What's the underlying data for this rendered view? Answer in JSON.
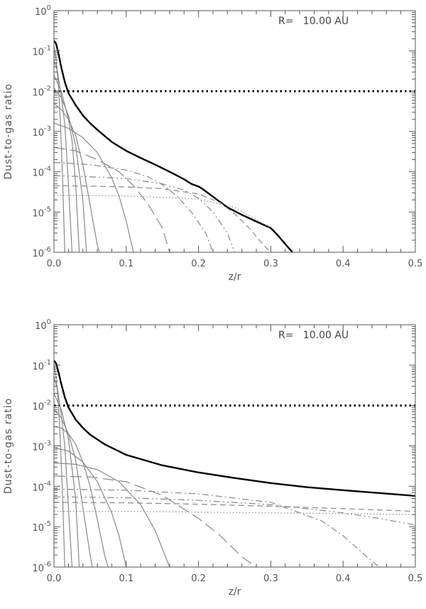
{
  "chart_data": [
    {
      "type": "line",
      "xlabel": "z/r",
      "ylabel": "Dust-to-gas ratio",
      "annotation": "R=   10.00 AU",
      "xlim": [
        0,
        0.5
      ],
      "ylim": [
        1e-06,
        1
      ],
      "yscale": "log",
      "xticks": [
        "0.0",
        "0.1",
        "0.2",
        "0.3",
        "0.4",
        "0.5"
      ],
      "yticks": [
        {
          "base": "10",
          "exp": "0"
        },
        {
          "base": "10",
          "exp": "-1"
        },
        {
          "base": "10",
          "exp": "-2"
        },
        {
          "base": "10",
          "exp": "-3"
        },
        {
          "base": "10",
          "exp": "-4"
        },
        {
          "base": "10",
          "exp": "-5"
        },
        {
          "base": "10",
          "exp": "-6"
        }
      ],
      "grid": false,
      "series": [
        {
          "style": "total",
          "color": "#000000",
          "x": [
            0,
            0.003,
            0.006,
            0.01,
            0.015,
            0.02,
            0.03,
            0.04,
            0.05,
            0.06,
            0.08,
            0.1,
            0.12,
            0.14,
            0.16,
            0.18,
            0.19,
            0.2,
            0.205,
            0.22,
            0.24,
            0.26,
            0.28,
            0.3,
            0.31,
            0.32,
            0.33
          ],
          "y": [
            0.18,
            0.15,
            0.09,
            0.04,
            0.017,
            0.009,
            0.0045,
            0.0025,
            0.0016,
            0.0011,
            0.00055,
            0.00033,
            0.00022,
            0.00015,
            0.0001,
            6.5e-05,
            5e-05,
            4.3e-05,
            3.8e-05,
            2.4e-05,
            1.3e-05,
            8.5e-06,
            5.8e-06,
            4e-06,
            2.6e-06,
            1.6e-06,
            1e-06
          ]
        },
        {
          "style": "reference",
          "color": "#000000",
          "x": [
            0,
            0.5
          ],
          "y": [
            0.01,
            0.01
          ]
        },
        {
          "style": "solid",
          "color": "#888888",
          "x": [
            0,
            0.003,
            0.006,
            0.009,
            0.012,
            0.015
          ],
          "y": [
            0.13,
            0.06,
            0.015,
            0.0015,
            6e-05,
            1e-06
          ]
        },
        {
          "style": "solid",
          "color": "#888888",
          "x": [
            0,
            0.005,
            0.01,
            0.015,
            0.02,
            0.025
          ],
          "y": [
            0.06,
            0.03,
            0.008,
            0.0015,
            5e-05,
            1e-06
          ]
        },
        {
          "style": "solid",
          "color": "#888888",
          "x": [
            0,
            0.01,
            0.02,
            0.025,
            0.03,
            0.035
          ],
          "y": [
            0.025,
            0.01,
            0.002,
            0.0006,
            5e-05,
            1e-06
          ]
        },
        {
          "style": "solid",
          "color": "#888888",
          "x": [
            0,
            0.01,
            0.02,
            0.03,
            0.04,
            0.045
          ],
          "y": [
            0.012,
            0.007,
            0.0025,
            0.00045,
            2e-05,
            1e-06
          ]
        },
        {
          "style": "solid",
          "color": "#888888",
          "x": [
            0,
            0.01,
            0.02,
            0.03,
            0.04,
            0.05,
            0.06,
            0.063
          ],
          "y": [
            0.005,
            0.0035,
            0.002,
            0.0008,
            0.00015,
            1.5e-05,
            1.5e-06,
            1e-06
          ]
        },
        {
          "style": "solid",
          "color": "#888888",
          "x": [
            0,
            0.02,
            0.04,
            0.06,
            0.08,
            0.09,
            0.1,
            0.11
          ],
          "y": [
            0.0016,
            0.0012,
            0.0007,
            0.0003,
            7e-05,
            2.5e-05,
            6e-06,
            1e-06
          ]
        },
        {
          "style": "longdash",
          "color": "#888888",
          "x": [
            0,
            0.03,
            0.06,
            0.09,
            0.11,
            0.13,
            0.15,
            0.16
          ],
          "y": [
            0.0004,
            0.00033,
            0.0002,
            0.0001,
            4.5e-05,
            1.6e-05,
            4e-06,
            1e-06
          ]
        },
        {
          "style": "dashdot",
          "color": "#888888",
          "x": [
            0,
            0.05,
            0.1,
            0.13,
            0.15,
            0.17,
            0.19,
            0.21,
            0.22
          ],
          "y": [
            0.00017,
            0.00015,
            0.00011,
            7.5e-05,
            4.8e-05,
            2.5e-05,
            1e-05,
            3e-06,
            1e-06
          ]
        },
        {
          "style": "dashdotdot",
          "color": "#888888",
          "x": [
            0,
            0.05,
            0.1,
            0.15,
            0.18,
            0.2,
            0.22,
            0.24,
            0.25
          ],
          "y": [
            8e-05,
            7.5e-05,
            6.8e-05,
            5e-05,
            3.5e-05,
            2.2e-05,
            1e-05,
            3e-06,
            1e-06
          ]
        },
        {
          "style": "dash",
          "color": "#888888",
          "x": [
            0,
            0.05,
            0.1,
            0.15,
            0.2,
            0.23,
            0.25,
            0.27,
            0.29,
            0.3
          ],
          "y": [
            4.5e-05,
            4.4e-05,
            4.2e-05,
            3.8e-05,
            2.8e-05,
            1.7e-05,
            9e-06,
            4e-06,
            1.5e-06,
            1e-06
          ]
        },
        {
          "style": "dot",
          "color": "#888888",
          "x": [
            0,
            0.1,
            0.2,
            0.25,
            0.3
          ],
          "y": [
            2.6e-05,
            2.5e-05,
            2.1e-05,
            1.3e-05,
            4e-06
          ]
        }
      ]
    },
    {
      "type": "line",
      "xlabel": "z/r",
      "ylabel": "Dust-to-gas ratio",
      "annotation": "R=   10.00 AU",
      "xlim": [
        0,
        0.5
      ],
      "ylim": [
        1e-06,
        1
      ],
      "yscale": "log",
      "xticks": [
        "0.0",
        "0.1",
        "0.2",
        "0.3",
        "0.4",
        "0.5"
      ],
      "yticks": [
        {
          "base": "10",
          "exp": "0"
        },
        {
          "base": "10",
          "exp": "-1"
        },
        {
          "base": "10",
          "exp": "-2"
        },
        {
          "base": "10",
          "exp": "-3"
        },
        {
          "base": "10",
          "exp": "-4"
        },
        {
          "base": "10",
          "exp": "-5"
        },
        {
          "base": "10",
          "exp": "-6"
        }
      ],
      "grid": false,
      "series": [
        {
          "style": "total",
          "color": "#000000",
          "x": [
            0,
            0.003,
            0.006,
            0.01,
            0.015,
            0.02,
            0.03,
            0.04,
            0.05,
            0.07,
            0.1,
            0.15,
            0.2,
            0.25,
            0.3,
            0.35,
            0.4,
            0.45,
            0.5
          ],
          "y": [
            0.13,
            0.11,
            0.07,
            0.035,
            0.016,
            0.009,
            0.0045,
            0.0028,
            0.0019,
            0.0011,
            0.0006,
            0.00033,
            0.00022,
            0.00016,
            0.00012,
            9.5e-05,
            8e-05,
            6.8e-05,
            5.8e-05
          ]
        },
        {
          "style": "reference",
          "color": "#000000",
          "x": [
            0,
            0.5
          ],
          "y": [
            0.01,
            0.01
          ]
        },
        {
          "style": "solid",
          "color": "#888888",
          "x": [
            0,
            0.003,
            0.006,
            0.009,
            0.012,
            0.015
          ],
          "y": [
            0.1,
            0.05,
            0.012,
            0.0012,
            5e-05,
            1e-06
          ]
        },
        {
          "style": "solid",
          "color": "#888888",
          "x": [
            0,
            0.005,
            0.01,
            0.015,
            0.02,
            0.025
          ],
          "y": [
            0.05,
            0.025,
            0.006,
            0.001,
            3e-05,
            1e-06
          ]
        },
        {
          "style": "solid",
          "color": "#888888",
          "x": [
            0,
            0.01,
            0.02,
            0.03,
            0.035
          ],
          "y": [
            0.02,
            0.008,
            0.0015,
            5e-05,
            1e-06
          ]
        },
        {
          "style": "solid",
          "color": "#888888",
          "x": [
            0,
            0.01,
            0.02,
            0.03,
            0.04,
            0.05,
            0.053
          ],
          "y": [
            0.008,
            0.005,
            0.002,
            0.00045,
            3e-05,
            2e-06,
            1e-06
          ]
        },
        {
          "style": "solid",
          "color": "#888888",
          "x": [
            0,
            0.01,
            0.02,
            0.03,
            0.04,
            0.05,
            0.06,
            0.07,
            0.075
          ],
          "y": [
            0.003,
            0.0028,
            0.002,
            0.0011,
            0.0004,
            0.0001,
            1.5e-05,
            2e-06,
            1e-06
          ]
        },
        {
          "style": "solid",
          "color": "#888888",
          "x": [
            0,
            0.02,
            0.04,
            0.06,
            0.08,
            0.09,
            0.1
          ],
          "y": [
            0.0009,
            0.00075,
            0.0004,
            0.00013,
            2.2e-05,
            6e-06,
            1e-06
          ]
        },
        {
          "style": "solid",
          "color": "#888888",
          "x": [
            0,
            0.03,
            0.06,
            0.09,
            0.12,
            0.14,
            0.16
          ],
          "y": [
            0.00038,
            0.00035,
            0.00026,
            0.00013,
            3.5e-05,
            8e-06,
            1e-06
          ]
        },
        {
          "style": "longdash",
          "color": "#888888",
          "x": [
            0,
            0.05,
            0.1,
            0.15,
            0.2,
            0.23,
            0.26,
            0.28
          ],
          "y": [
            0.00018,
            0.00017,
            0.00013,
            6e-05,
            1.6e-05,
            6e-06,
            1.8e-06,
            1e-06
          ]
        },
        {
          "style": "dashdot",
          "color": "#888888",
          "x": [
            0,
            0.1,
            0.2,
            0.3,
            0.37,
            0.4,
            0.43,
            0.45
          ],
          "y": [
            8.5e-05,
            8e-05,
            6.5e-05,
            4e-05,
            1.4e-05,
            6e-06,
            2e-06,
            1e-06
          ]
        },
        {
          "style": "dashdotdot",
          "color": "#888888",
          "x": [
            0,
            0.1,
            0.2,
            0.3,
            0.4,
            0.45,
            0.5
          ],
          "y": [
            5.5e-05,
            5.2e-05,
            4.5e-05,
            3.5e-05,
            2.2e-05,
            1.6e-05,
            1.1e-05
          ]
        },
        {
          "style": "dash",
          "color": "#888888",
          "x": [
            0,
            0.1,
            0.2,
            0.3,
            0.4,
            0.5
          ],
          "y": [
            4e-05,
            3.9e-05,
            3.6e-05,
            3.2e-05,
            2.8e-05,
            2.4e-05
          ]
        },
        {
          "style": "dot",
          "color": "#888888",
          "x": [
            0,
            0.1,
            0.2,
            0.3,
            0.4,
            0.5
          ],
          "y": [
            2.4e-05,
            2.4e-05,
            2.3e-05,
            2.2e-05,
            2.1e-05,
            2e-05
          ]
        }
      ]
    }
  ]
}
